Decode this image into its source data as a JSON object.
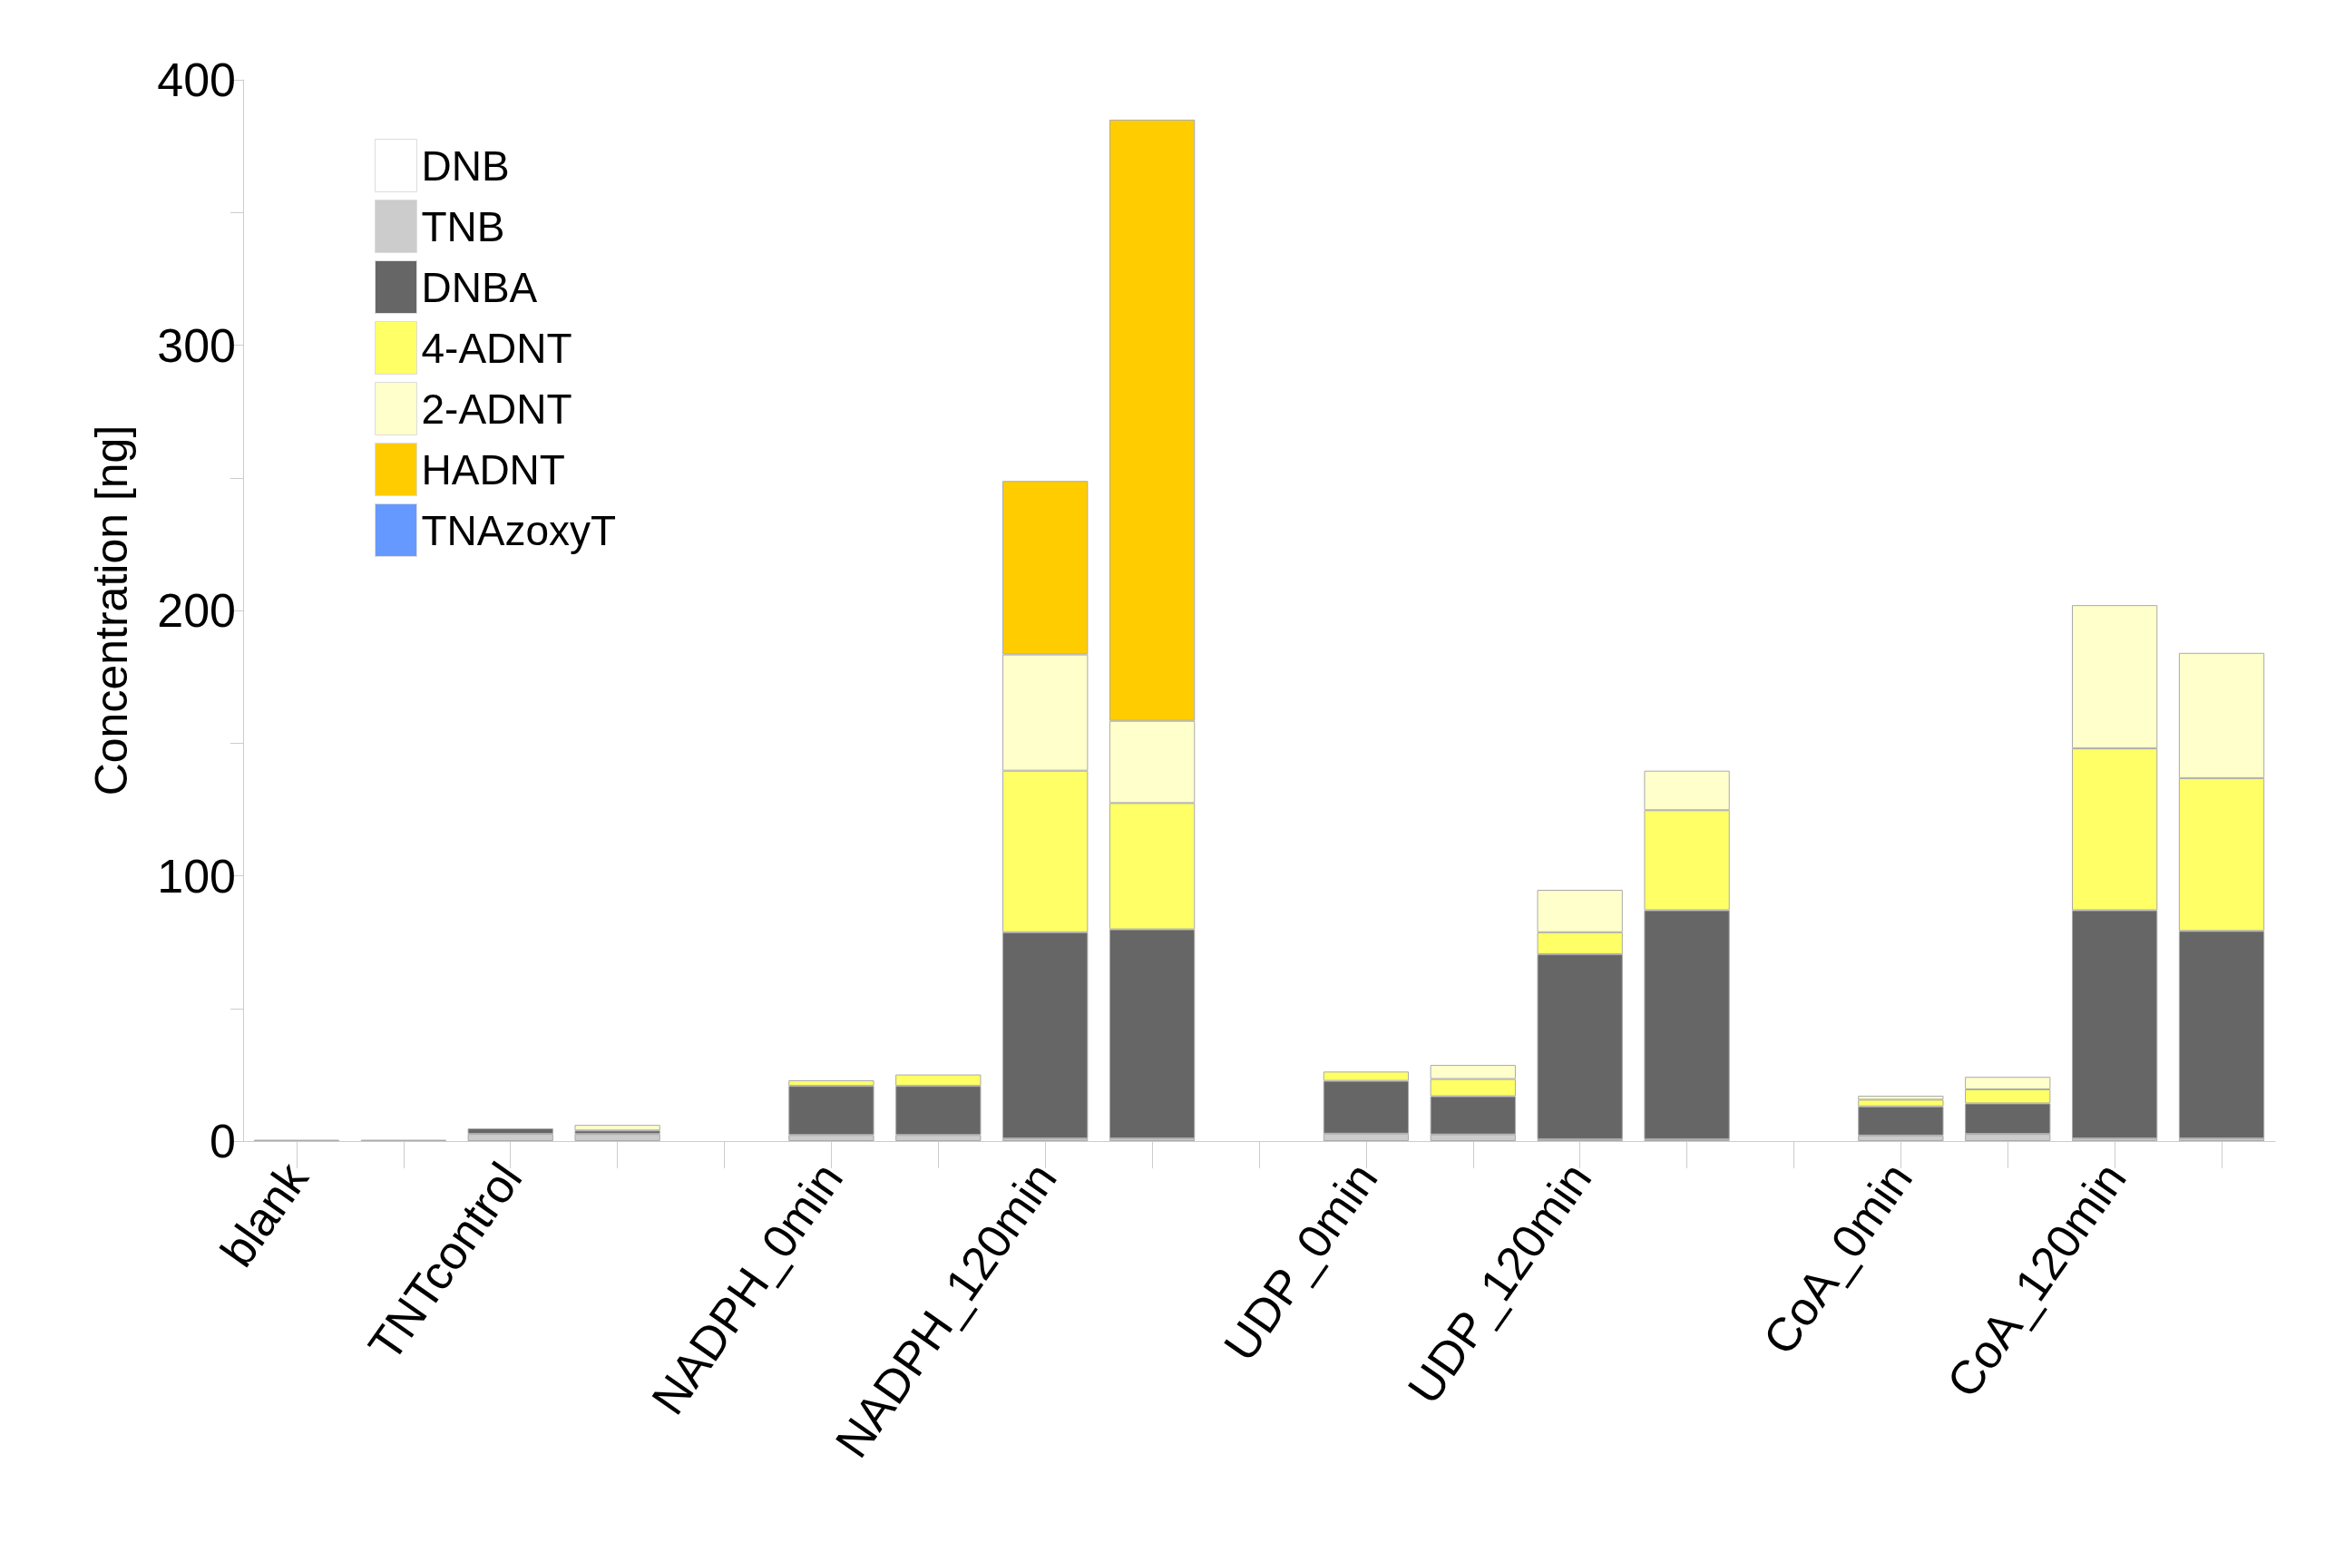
{
  "chart_data": {
    "type": "bar",
    "stacked": true,
    "ylabel": "Concentration [ng]",
    "ylim": [
      0,
      400
    ],
    "yticks": [
      0,
      {
        "value": 50,
        "label": null
      },
      100,
      {
        "value": 150,
        "label": null
      },
      200,
      {
        "value": 250,
        "label": null
      },
      300,
      {
        "value": 350,
        "label": null
      },
      400
    ],
    "categories": [
      "blank",
      null,
      "TNTcontrol",
      null,
      null,
      "NADPH_0min",
      null,
      "NADPH_120min",
      null,
      null,
      "UDP_0min",
      null,
      "UDP_120min",
      null,
      null,
      "CoA_0min",
      null,
      "CoA_120min",
      null
    ],
    "legend": "top left",
    "grid": false,
    "series": [
      {
        "name": "DNB",
        "color": "#ffffff",
        "values": [
          0,
          0,
          0,
          0,
          null,
          0,
          0,
          0,
          0,
          null,
          0,
          0,
          0,
          0,
          null,
          0,
          0,
          0,
          0
        ]
      },
      {
        "name": "TNB",
        "color": "#cccccc",
        "values": [
          0.5,
          0.5,
          2.7,
          2.7,
          null,
          2.3,
          2.3,
          1,
          1,
          null,
          2.8,
          2.5,
          0.7,
          0.7,
          null,
          2.1,
          2.7,
          1,
          1
        ]
      },
      {
        "name": "DNBA",
        "color": "#666666",
        "values": [
          0,
          0,
          2.1,
          1.3,
          null,
          18.5,
          18.5,
          77.7,
          78.8,
          null,
          19.9,
          14.4,
          69.7,
          86.3,
          null,
          11,
          11.5,
          86,
          78.2
        ]
      },
      {
        "name": "4-ADNT",
        "color": "#ffff66",
        "values": [
          0,
          0,
          0,
          0,
          null,
          2.1,
          4.3,
          60.9,
          47.6,
          null,
          3.5,
          6.5,
          8.3,
          37.7,
          null,
          2.5,
          5.3,
          61,
          57.6
        ]
      },
      {
        "name": "2-ADNT",
        "color": "#ffffcc",
        "values": [
          0,
          0,
          0,
          2.1,
          null,
          0,
          0,
          43.8,
          31,
          null,
          0,
          5.3,
          16,
          14.9,
          null,
          1.5,
          4.7,
          54,
          47.2
        ]
      },
      {
        "name": "HADNT",
        "color": "#ffcc00",
        "values": [
          0,
          0,
          0,
          0,
          null,
          0,
          0,
          65.4,
          226.6,
          null,
          0,
          0,
          0,
          0,
          null,
          0,
          0,
          0,
          0
        ]
      },
      {
        "name": "TNAzoxyT",
        "color": "#6699ff",
        "values": [
          0,
          0,
          0,
          0,
          null,
          0,
          0,
          0,
          0,
          null,
          0,
          0,
          0,
          0,
          null,
          0,
          0,
          0,
          0
        ]
      }
    ]
  }
}
